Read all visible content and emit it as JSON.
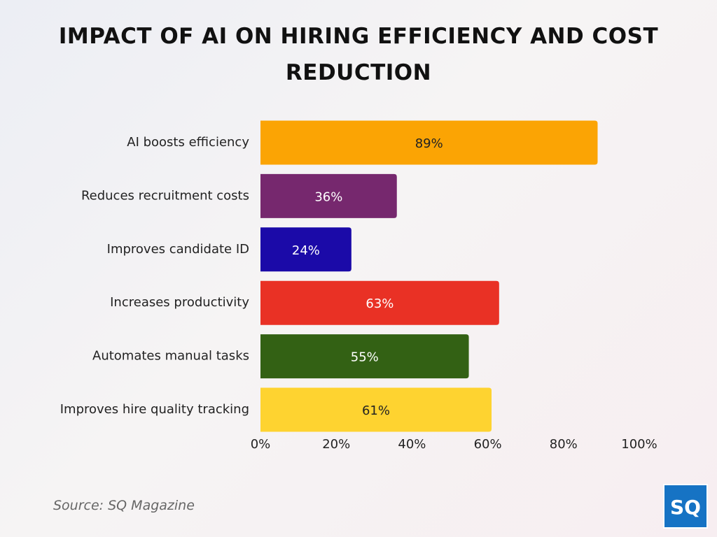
{
  "chart_data": {
    "type": "hbar",
    "title": "IMPACT OF AI ON HIRING EFFICIENCY AND COST REDUCTION",
    "categories": [
      "AI boosts efficiency",
      "Reduces recruitment costs",
      "Improves candidate ID",
      "Increases productivity",
      "Automates manual tasks",
      "Improves hire quality tracking"
    ],
    "values": [
      89,
      36,
      24,
      63,
      55,
      61
    ],
    "value_labels": [
      "89%",
      "36%",
      "24%",
      "63%",
      "55%",
      "61%"
    ],
    "colors": [
      "#fba404",
      "#76286e",
      "#1b0aa8",
      "#e93125",
      "#336114",
      "#fed330"
    ],
    "xlim": [
      0,
      100
    ],
    "xticks": [
      {
        "value": 0,
        "label": "0%"
      },
      {
        "value": 20,
        "label": "20%"
      },
      {
        "value": 40,
        "label": "40%"
      },
      {
        "value": 60,
        "label": "60%"
      },
      {
        "value": 80,
        "label": "80%"
      },
      {
        "value": 100,
        "label": "100%"
      }
    ],
    "grid": false,
    "source": "Source: SQ Magazine",
    "logo": "SQ"
  }
}
